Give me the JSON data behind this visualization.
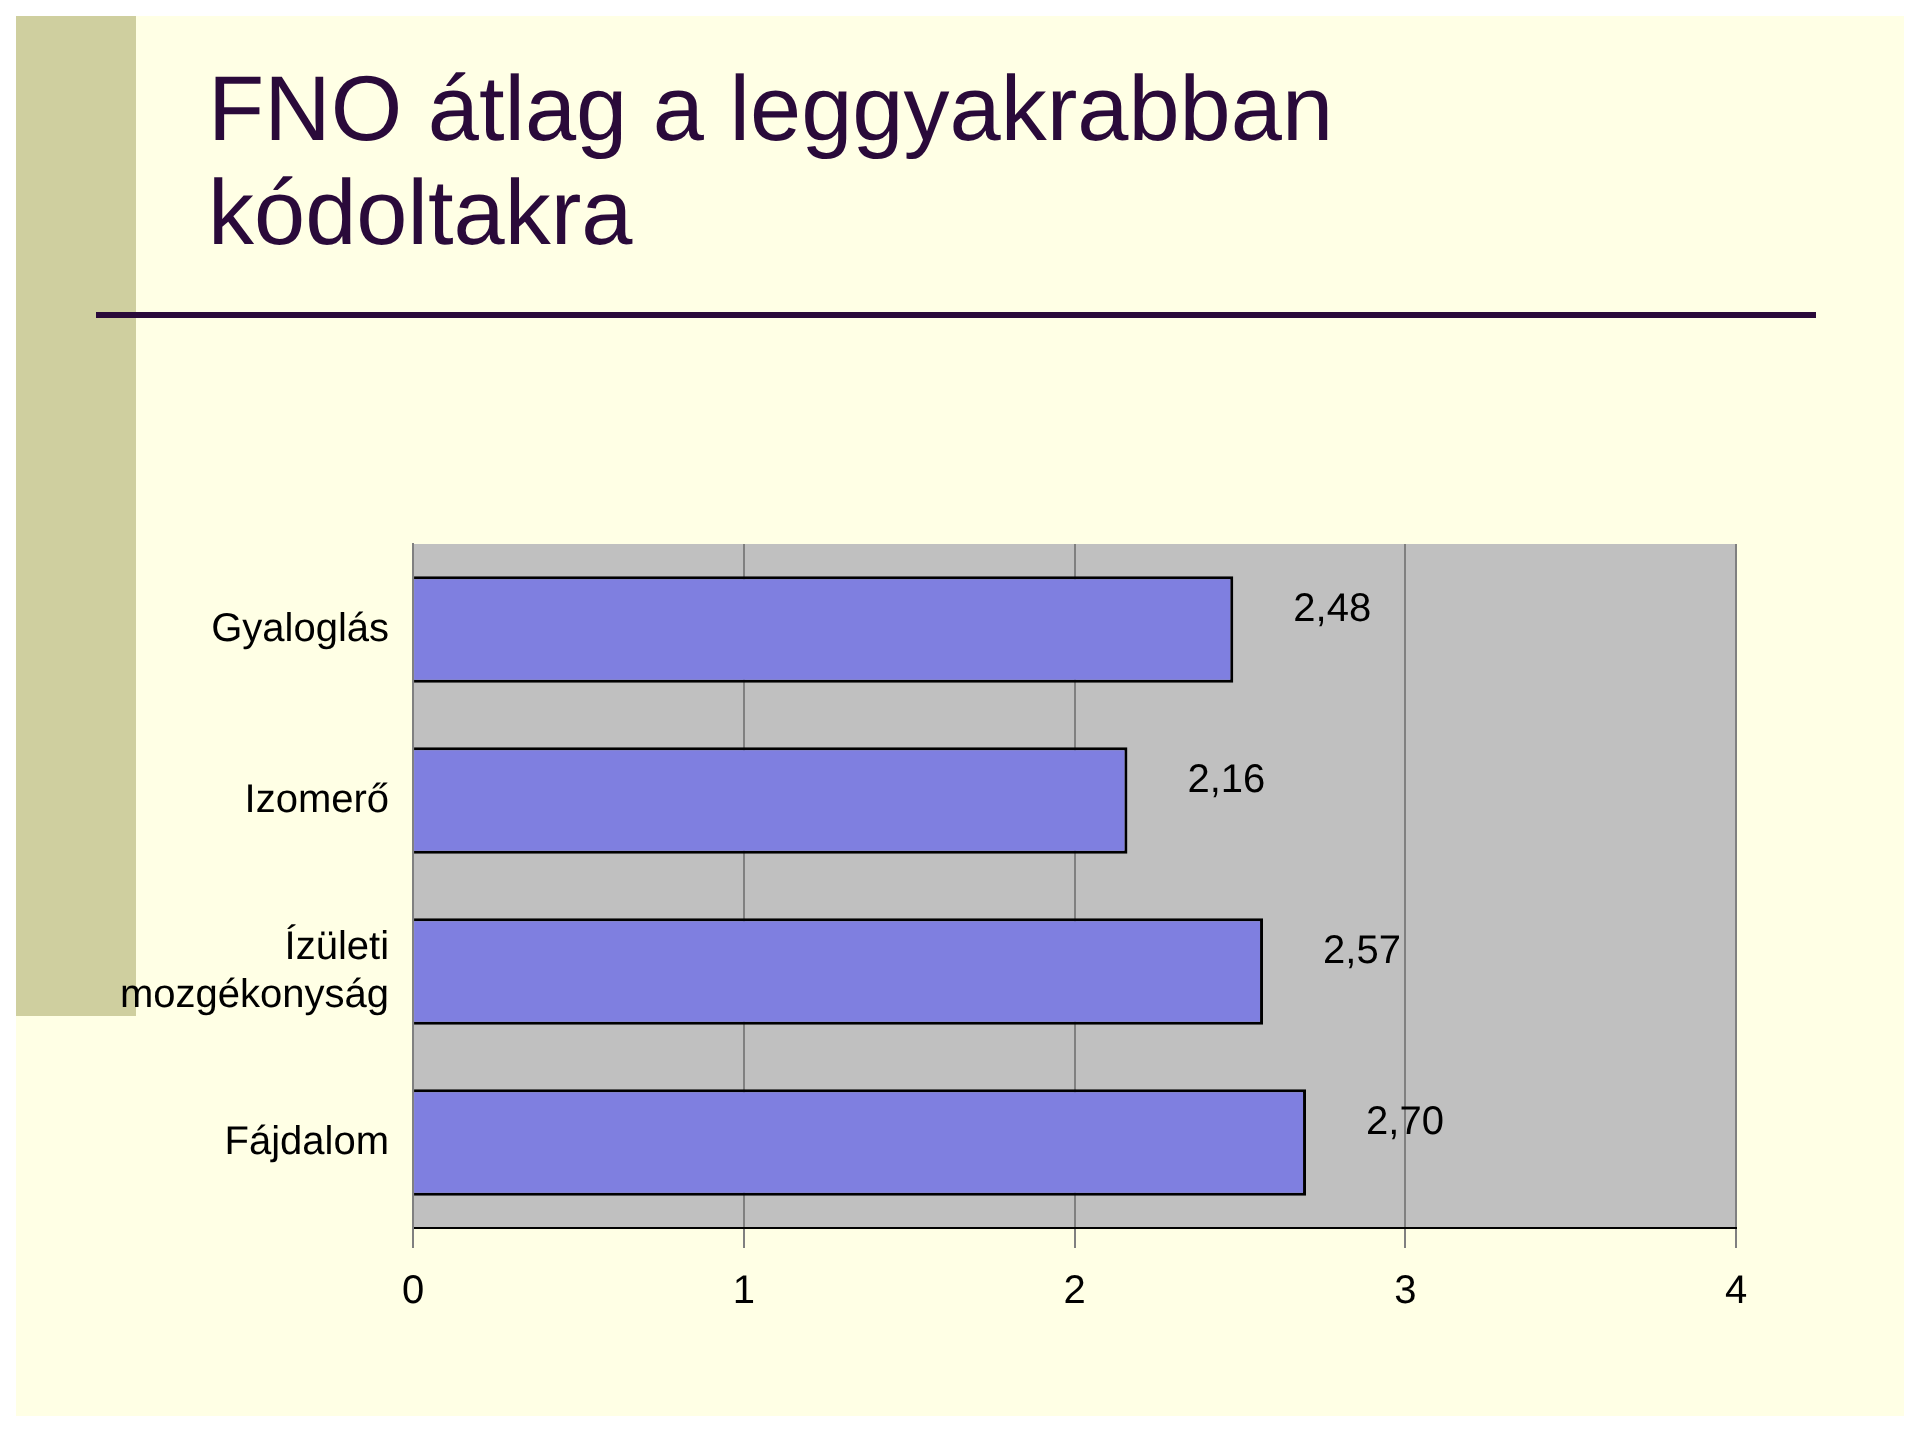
{
  "chart_data": {
    "type": "bar",
    "orientation": "horizontal",
    "title": "FNO átlag a leggyakrabban kódoltakra",
    "categories": [
      "Gyaloglás",
      "Izomerő",
      "Ízületi mozgékonyság",
      "Fájdalom"
    ],
    "values": [
      2.48,
      2.16,
      2.57,
      2.7
    ],
    "value_labels": [
      "2,48",
      "2,16",
      "2,57",
      "2,70"
    ],
    "color": "#7f7fe0",
    "xlim": [
      0,
      4
    ],
    "xticks": [
      0,
      1,
      2,
      3,
      4
    ],
    "grid": "x",
    "legend": false
  }
}
